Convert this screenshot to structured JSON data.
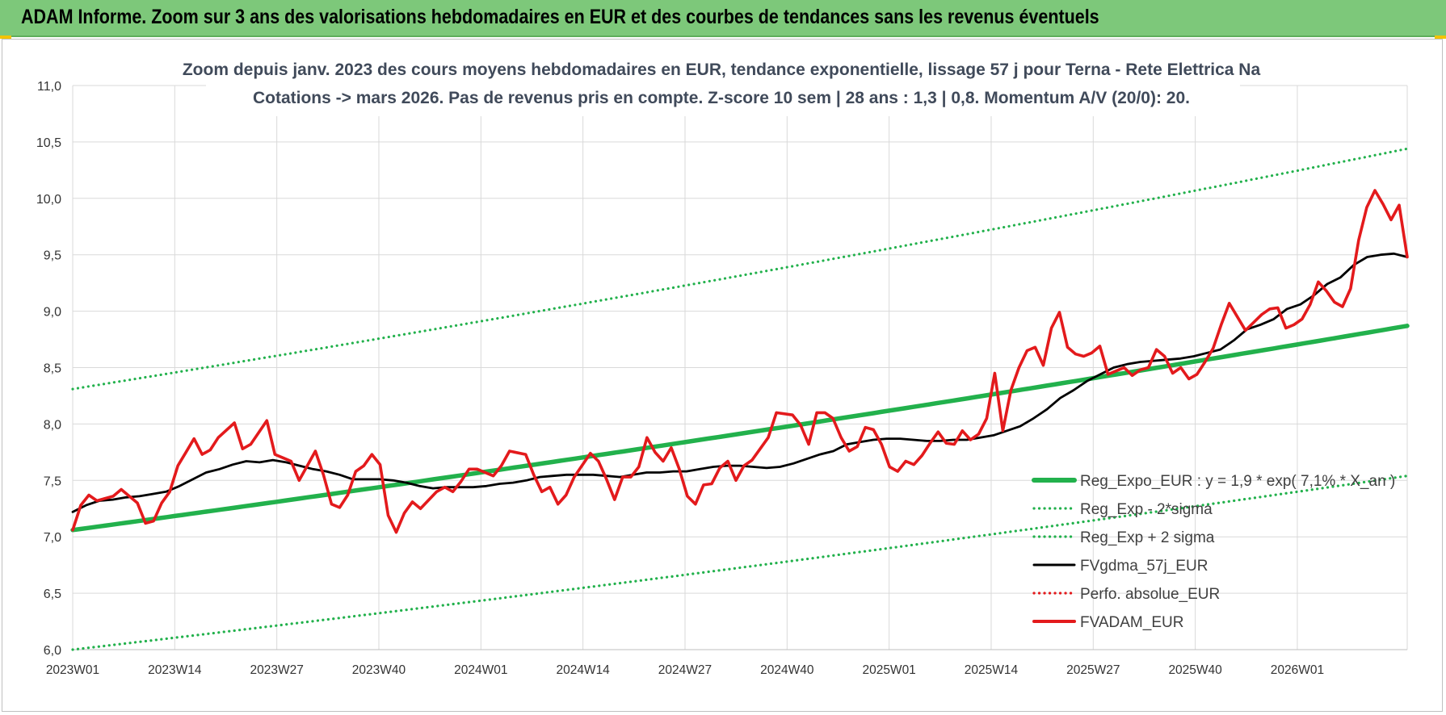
{
  "header": {
    "title": "ADAM Informe. Zoom sur 3 ans des valorisations hebdomadaires en EUR et des courbes de tendances sans les revenus éventuels"
  },
  "colors": {
    "header_bg": "#7dc87a",
    "green": "#22b14c",
    "black": "#000000",
    "red": "#e31a1c",
    "grid": "#d9d9d9"
  },
  "chart_data": {
    "type": "line",
    "title_line1": "Zoom depuis janv. 2023 des cours moyens hebdomadaires en EUR, tendance exponentielle, lissage 57 j pour Terna - Rete Elettrica Na",
    "title_line2": "Cotations -> mars 2026. Pas de revenus pris en compte. Z-score 10 sem | 28 ans : 1,3 | 0,8. Momentum A/V (20/0): 20.",
    "ylim": [
      6.0,
      11.0
    ],
    "yticks": [
      "6,0",
      "6,5",
      "7,0",
      "7,5",
      "8,0",
      "8,5",
      "9,0",
      "9,5",
      "10,0",
      "10,5",
      "11,0"
    ],
    "x_tick_labels": [
      "2023W01",
      "2023W14",
      "2023W27",
      "2023W40",
      "2024W01",
      "2024W14",
      "2024W27",
      "2024W40",
      "2025W01",
      "2025W14",
      "2025W27",
      "2025W40",
      "2026W01"
    ],
    "weeks_count": 171,
    "grid": "both",
    "legend_position": "bottom-right",
    "series": [
      {
        "name": "Reg_Expo_EUR : y = 1,9 * exp( 7,1% * X_an )",
        "style": "solid-thick",
        "color": "#22b14c",
        "start": 7.06,
        "end": 8.87
      },
      {
        "name": "Reg_Exp - 2*sigma",
        "style": "dotted",
        "color": "#22b14c",
        "start": 6.0,
        "end": 7.54
      },
      {
        "name": "Reg_Exp + 2 sigma",
        "style": "dotted",
        "color": "#22b14c",
        "start": 8.31,
        "end": 10.44
      },
      {
        "name": "FVgdma_57j_EUR",
        "style": "solid",
        "color": "#000000",
        "points": [
          [
            0,
            7.22
          ],
          [
            2,
            7.28
          ],
          [
            4,
            7.32
          ],
          [
            6,
            7.33
          ],
          [
            8,
            7.35
          ],
          [
            10,
            7.36
          ],
          [
            12,
            7.38
          ],
          [
            14,
            7.4
          ],
          [
            16,
            7.45
          ],
          [
            18,
            7.51
          ],
          [
            20,
            7.57
          ],
          [
            22,
            7.6
          ],
          [
            24,
            7.64
          ],
          [
            26,
            7.67
          ],
          [
            28,
            7.66
          ],
          [
            30,
            7.68
          ],
          [
            32,
            7.66
          ],
          [
            34,
            7.63
          ],
          [
            36,
            7.6
          ],
          [
            38,
            7.58
          ],
          [
            40,
            7.55
          ],
          [
            42,
            7.51
          ],
          [
            44,
            7.51
          ],
          [
            46,
            7.51
          ],
          [
            48,
            7.5
          ],
          [
            50,
            7.48
          ],
          [
            52,
            7.45
          ],
          [
            54,
            7.43
          ],
          [
            56,
            7.44
          ],
          [
            58,
            7.44
          ],
          [
            60,
            7.44
          ],
          [
            62,
            7.45
          ],
          [
            64,
            7.47
          ],
          [
            66,
            7.48
          ],
          [
            68,
            7.5
          ],
          [
            70,
            7.53
          ],
          [
            72,
            7.54
          ],
          [
            74,
            7.55
          ],
          [
            76,
            7.55
          ],
          [
            78,
            7.55
          ],
          [
            80,
            7.54
          ],
          [
            82,
            7.53
          ],
          [
            84,
            7.55
          ],
          [
            86,
            7.57
          ],
          [
            88,
            7.57
          ],
          [
            90,
            7.58
          ],
          [
            92,
            7.58
          ],
          [
            94,
            7.6
          ],
          [
            96,
            7.62
          ],
          [
            98,
            7.63
          ],
          [
            100,
            7.63
          ],
          [
            102,
            7.62
          ],
          [
            104,
            7.61
          ],
          [
            106,
            7.62
          ],
          [
            108,
            7.65
          ],
          [
            110,
            7.69
          ],
          [
            112,
            7.73
          ],
          [
            114,
            7.76
          ],
          [
            116,
            7.82
          ],
          [
            118,
            7.84
          ],
          [
            120,
            7.86
          ],
          [
            122,
            7.87
          ],
          [
            124,
            7.87
          ],
          [
            126,
            7.86
          ],
          [
            128,
            7.85
          ],
          [
            130,
            7.85
          ],
          [
            132,
            7.86
          ],
          [
            134,
            7.86
          ],
          [
            136,
            7.88
          ],
          [
            138,
            7.9
          ],
          [
            140,
            7.94
          ],
          [
            142,
            7.98
          ],
          [
            144,
            8.05
          ],
          [
            146,
            8.13
          ],
          [
            148,
            8.23
          ],
          [
            150,
            8.3
          ],
          [
            152,
            8.38
          ],
          [
            154,
            8.44
          ],
          [
            156,
            8.5
          ],
          [
            158,
            8.53
          ],
          [
            160,
            8.55
          ],
          [
            162,
            8.56
          ],
          [
            164,
            8.57
          ],
          [
            166,
            8.58
          ],
          [
            168,
            8.6
          ],
          [
            170,
            8.63
          ],
          [
            172,
            8.66
          ],
          [
            174,
            8.74
          ],
          [
            176,
            8.84
          ],
          [
            178,
            8.88
          ],
          [
            180,
            8.93
          ],
          [
            182,
            9.02
          ],
          [
            184,
            9.06
          ],
          [
            186,
            9.14
          ],
          [
            188,
            9.24
          ],
          [
            190,
            9.3
          ],
          [
            192,
            9.41
          ],
          [
            194,
            9.48
          ],
          [
            196,
            9.5
          ],
          [
            198,
            9.51
          ],
          [
            200,
            9.48
          ]
        ]
      },
      {
        "name": "Perfo. absolue_EUR",
        "style": "dotted",
        "color": "#e31a1c",
        "points": []
      },
      {
        "name": "FVADAM_EUR",
        "style": "solid-thick",
        "color": "#e31a1c",
        "points": [
          [
            0,
            7.06
          ],
          [
            1,
            7.28
          ],
          [
            2,
            7.37
          ],
          [
            3,
            7.32
          ],
          [
            5,
            7.36
          ],
          [
            6,
            7.42
          ],
          [
            8,
            7.3
          ],
          [
            9,
            7.12
          ],
          [
            10,
            7.14
          ],
          [
            11,
            7.3
          ],
          [
            12,
            7.4
          ],
          [
            13,
            7.63
          ],
          [
            14,
            7.75
          ],
          [
            15,
            7.87
          ],
          [
            16,
            7.73
          ],
          [
            17,
            7.77
          ],
          [
            18,
            7.88
          ],
          [
            20,
            8.01
          ],
          [
            21,
            7.78
          ],
          [
            22,
            7.82
          ],
          [
            24,
            8.03
          ],
          [
            25,
            7.73
          ],
          [
            26,
            7.7
          ],
          [
            27,
            7.67
          ],
          [
            28,
            7.5
          ],
          [
            29,
            7.63
          ],
          [
            30,
            7.76
          ],
          [
            31,
            7.55
          ],
          [
            32,
            7.29
          ],
          [
            33,
            7.26
          ],
          [
            34,
            7.37
          ],
          [
            35,
            7.58
          ],
          [
            36,
            7.63
          ],
          [
            37,
            7.73
          ],
          [
            38,
            7.64
          ],
          [
            39,
            7.19
          ],
          [
            40,
            7.04
          ],
          [
            41,
            7.21
          ],
          [
            42,
            7.31
          ],
          [
            43,
            7.25
          ],
          [
            45,
            7.4
          ],
          [
            46,
            7.44
          ],
          [
            47,
            7.4
          ],
          [
            48,
            7.49
          ],
          [
            49,
            7.6
          ],
          [
            50,
            7.6
          ],
          [
            52,
            7.54
          ],
          [
            53,
            7.63
          ],
          [
            54,
            7.76
          ],
          [
            56,
            7.73
          ],
          [
            57,
            7.55
          ],
          [
            58,
            7.4
          ],
          [
            59,
            7.44
          ],
          [
            60,
            7.29
          ],
          [
            61,
            7.37
          ],
          [
            62,
            7.53
          ],
          [
            64,
            7.74
          ],
          [
            65,
            7.67
          ],
          [
            66,
            7.51
          ],
          [
            67,
            7.33
          ],
          [
            68,
            7.53
          ],
          [
            69,
            7.53
          ],
          [
            70,
            7.62
          ],
          [
            71,
            7.88
          ],
          [
            72,
            7.75
          ],
          [
            73,
            7.67
          ],
          [
            74,
            7.79
          ],
          [
            75,
            7.6
          ],
          [
            76,
            7.36
          ],
          [
            77,
            7.29
          ],
          [
            78,
            7.46
          ],
          [
            79,
            7.47
          ],
          [
            80,
            7.61
          ],
          [
            81,
            7.67
          ],
          [
            82,
            7.5
          ],
          [
            83,
            7.63
          ],
          [
            84,
            7.68
          ],
          [
            86,
            7.88
          ],
          [
            87,
            8.1
          ],
          [
            89,
            8.08
          ],
          [
            90,
            7.99
          ],
          [
            91,
            7.82
          ],
          [
            92,
            8.1
          ],
          [
            93,
            8.1
          ],
          [
            94,
            8.05
          ],
          [
            95,
            7.88
          ],
          [
            96,
            7.76
          ],
          [
            97,
            7.8
          ],
          [
            98,
            7.97
          ],
          [
            99,
            7.95
          ],
          [
            100,
            7.82
          ],
          [
            101,
            7.62
          ],
          [
            102,
            7.58
          ],
          [
            103,
            7.67
          ],
          [
            104,
            7.64
          ],
          [
            105,
            7.72
          ],
          [
            106,
            7.83
          ],
          [
            107,
            7.93
          ],
          [
            108,
            7.83
          ],
          [
            109,
            7.82
          ],
          [
            110,
            7.94
          ],
          [
            111,
            7.86
          ],
          [
            112,
            7.91
          ],
          [
            113,
            8.05
          ],
          [
            114,
            8.45
          ],
          [
            115,
            7.94
          ],
          [
            116,
            8.3
          ],
          [
            117,
            8.5
          ],
          [
            118,
            8.65
          ],
          [
            119,
            8.68
          ],
          [
            120,
            8.52
          ],
          [
            121,
            8.85
          ],
          [
            122,
            8.99
          ],
          [
            123,
            8.68
          ],
          [
            124,
            8.62
          ],
          [
            125,
            8.6
          ],
          [
            126,
            8.63
          ],
          [
            127,
            8.69
          ],
          [
            128,
            8.44
          ],
          [
            129,
            8.47
          ],
          [
            130,
            8.5
          ],
          [
            131,
            8.43
          ],
          [
            132,
            8.48
          ],
          [
            133,
            8.5
          ],
          [
            134,
            8.66
          ],
          [
            135,
            8.6
          ],
          [
            136,
            8.45
          ],
          [
            137,
            8.5
          ],
          [
            138,
            8.4
          ],
          [
            139,
            8.44
          ],
          [
            140,
            8.55
          ],
          [
            141,
            8.67
          ],
          [
            142,
            8.88
          ],
          [
            143,
            9.07
          ],
          [
            144,
            8.95
          ],
          [
            145,
            8.83
          ],
          [
            146,
            8.9
          ],
          [
            147,
            8.97
          ],
          [
            148,
            9.02
          ],
          [
            149,
            9.03
          ],
          [
            150,
            8.85
          ],
          [
            151,
            8.88
          ],
          [
            152,
            8.93
          ],
          [
            153,
            9.06
          ],
          [
            154,
            9.26
          ],
          [
            155,
            9.18
          ],
          [
            156,
            9.08
          ],
          [
            157,
            9.04
          ],
          [
            158,
            9.2
          ],
          [
            159,
            9.63
          ],
          [
            160,
            9.92
          ],
          [
            161,
            10.07
          ],
          [
            162,
            9.95
          ],
          [
            163,
            9.81
          ],
          [
            164,
            9.94
          ],
          [
            165,
            9.48
          ]
        ]
      }
    ]
  }
}
